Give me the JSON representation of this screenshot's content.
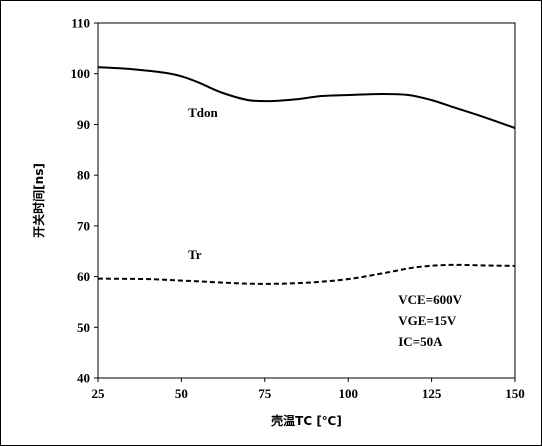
{
  "chart_data": {
    "type": "line",
    "xlabel": "壳温TC [℃]",
    "ylabel": "开关时间[ns]",
    "xlim": [
      25,
      150
    ],
    "ylim": [
      40,
      110
    ],
    "x_ticks": [
      "25",
      "50",
      "75",
      "100",
      "125",
      "150"
    ],
    "y_ticks": [
      "40",
      "50",
      "60",
      "70",
      "80",
      "90",
      "100",
      "110"
    ],
    "grid": false,
    "series": [
      {
        "name": "Tdon",
        "style": "solid",
        "x": [
          25,
          35,
          45,
          50,
          55,
          62,
          70,
          77,
          85,
          92,
          100,
          110,
          118,
          125,
          132,
          140,
          150
        ],
        "y": [
          101.3,
          100.9,
          100.2,
          99.5,
          98.3,
          96.3,
          94.8,
          94.6,
          95.0,
          95.6,
          95.8,
          96.0,
          95.8,
          94.8,
          93.3,
          91.6,
          89.3
        ]
      },
      {
        "name": "Tr",
        "style": "dashed",
        "x": [
          25,
          40,
          50,
          60,
          70,
          80,
          90,
          100,
          110,
          120,
          130,
          140,
          150
        ],
        "y": [
          59.6,
          59.5,
          59.2,
          58.9,
          58.6,
          58.6,
          58.9,
          59.5,
          60.6,
          61.8,
          62.3,
          62.2,
          62.1
        ]
      }
    ],
    "annotation": [
      "VCE=600V",
      "VGE=15V",
      "IC=50A"
    ]
  }
}
